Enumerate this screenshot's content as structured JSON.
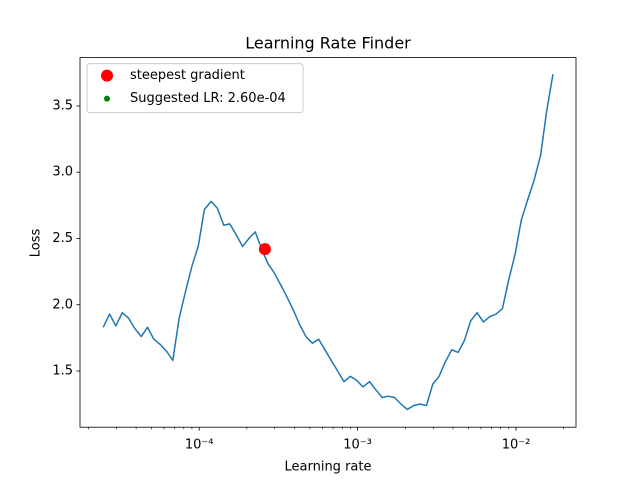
{
  "chart_data": {
    "type": "line",
    "title": "Learning Rate Finder",
    "x_label": "Learning rate",
    "y_label": "Loss",
    "xscale": "log",
    "legend": "upper left",
    "x": [
      2.48e-05,
      2.72e-05,
      2.98e-05,
      3.27e-05,
      3.58e-05,
      3.93e-05,
      4.31e-05,
      4.72e-05,
      5.18e-05,
      5.68e-05,
      6.22e-05,
      6.82e-05,
      7.48e-05,
      8.2e-05,
      9e-05,
      9.86e-05,
      0.000108,
      0.000119,
      0.00013,
      0.000143,
      0.000156,
      0.000171,
      0.000188,
      0.000206,
      0.000226,
      0.000248,
      0.000272,
      0.000298,
      0.000327,
      0.000358,
      0.000393,
      0.000431,
      0.000472,
      0.000518,
      0.000568,
      0.000622,
      0.000682,
      0.000748,
      0.00082,
      0.0009,
      0.000986,
      0.00108,
      0.00119,
      0.0013,
      0.00143,
      0.00156,
      0.00171,
      0.00188,
      0.00206,
      0.00226,
      0.00248,
      0.00272,
      0.00298,
      0.00327,
      0.00358,
      0.00393,
      0.00431,
      0.00472,
      0.00518,
      0.00568,
      0.00622,
      0.00682,
      0.00748,
      0.0082,
      0.009,
      0.00986,
      0.0108,
      0.0119,
      0.013,
      0.0143,
      0.0156,
      0.0171
    ],
    "series": [
      {
        "color": "#1f77b4",
        "values": [
          1.83,
          1.93,
          1.84,
          1.94,
          1.9,
          1.82,
          1.76,
          1.83,
          1.74,
          1.7,
          1.65,
          1.58,
          1.9,
          2.1,
          2.29,
          2.44,
          2.72,
          2.78,
          2.73,
          2.6,
          2.61,
          2.53,
          2.44,
          2.5,
          2.55,
          2.42,
          2.31,
          2.24,
          2.15,
          2.06,
          1.96,
          1.85,
          1.76,
          1.71,
          1.74,
          1.66,
          1.58,
          1.5,
          1.42,
          1.46,
          1.43,
          1.38,
          1.42,
          1.36,
          1.3,
          1.31,
          1.3,
          1.25,
          1.21,
          1.24,
          1.25,
          1.24,
          1.4,
          1.46,
          1.57,
          1.66,
          1.64,
          1.73,
          1.88,
          1.94,
          1.87,
          1.91,
          1.93,
          1.97,
          2.19,
          2.38,
          2.64,
          2.8,
          2.94,
          3.13,
          3.46,
          3.74
        ]
      }
    ],
    "markers": [
      {
        "name": "steepest gradient",
        "color": "red",
        "x": [
          0.00026
        ],
        "values": [
          2.42
        ]
      },
      {
        "name": "Suggested LR: 2.60e-04",
        "color": "green"
      }
    ],
    "xlim": [
      1.77e-05,
      0.0239
    ],
    "ylim": [
      1.076,
      3.865
    ],
    "xticks": [
      {
        "value": 0.0001,
        "label": "10⁻⁴"
      },
      {
        "value": 0.001,
        "label": "10⁻³"
      },
      {
        "value": 0.01,
        "label": "10⁻²"
      }
    ],
    "xminorticks": [
      2e-05,
      3e-05,
      4e-05,
      5e-05,
      6e-05,
      7e-05,
      8e-05,
      9e-05,
      0.0002,
      0.0003,
      0.0004,
      0.0005,
      0.0006,
      0.0007,
      0.0008,
      0.0009,
      0.002,
      0.003,
      0.004,
      0.005,
      0.006,
      0.007,
      0.008,
      0.009,
      0.02
    ],
    "yticks": [
      1.5,
      {
        "value": 2,
        "label": "2.0"
      },
      2.5,
      {
        "value": 3,
        "label": "3.0"
      },
      3.5
    ]
  }
}
